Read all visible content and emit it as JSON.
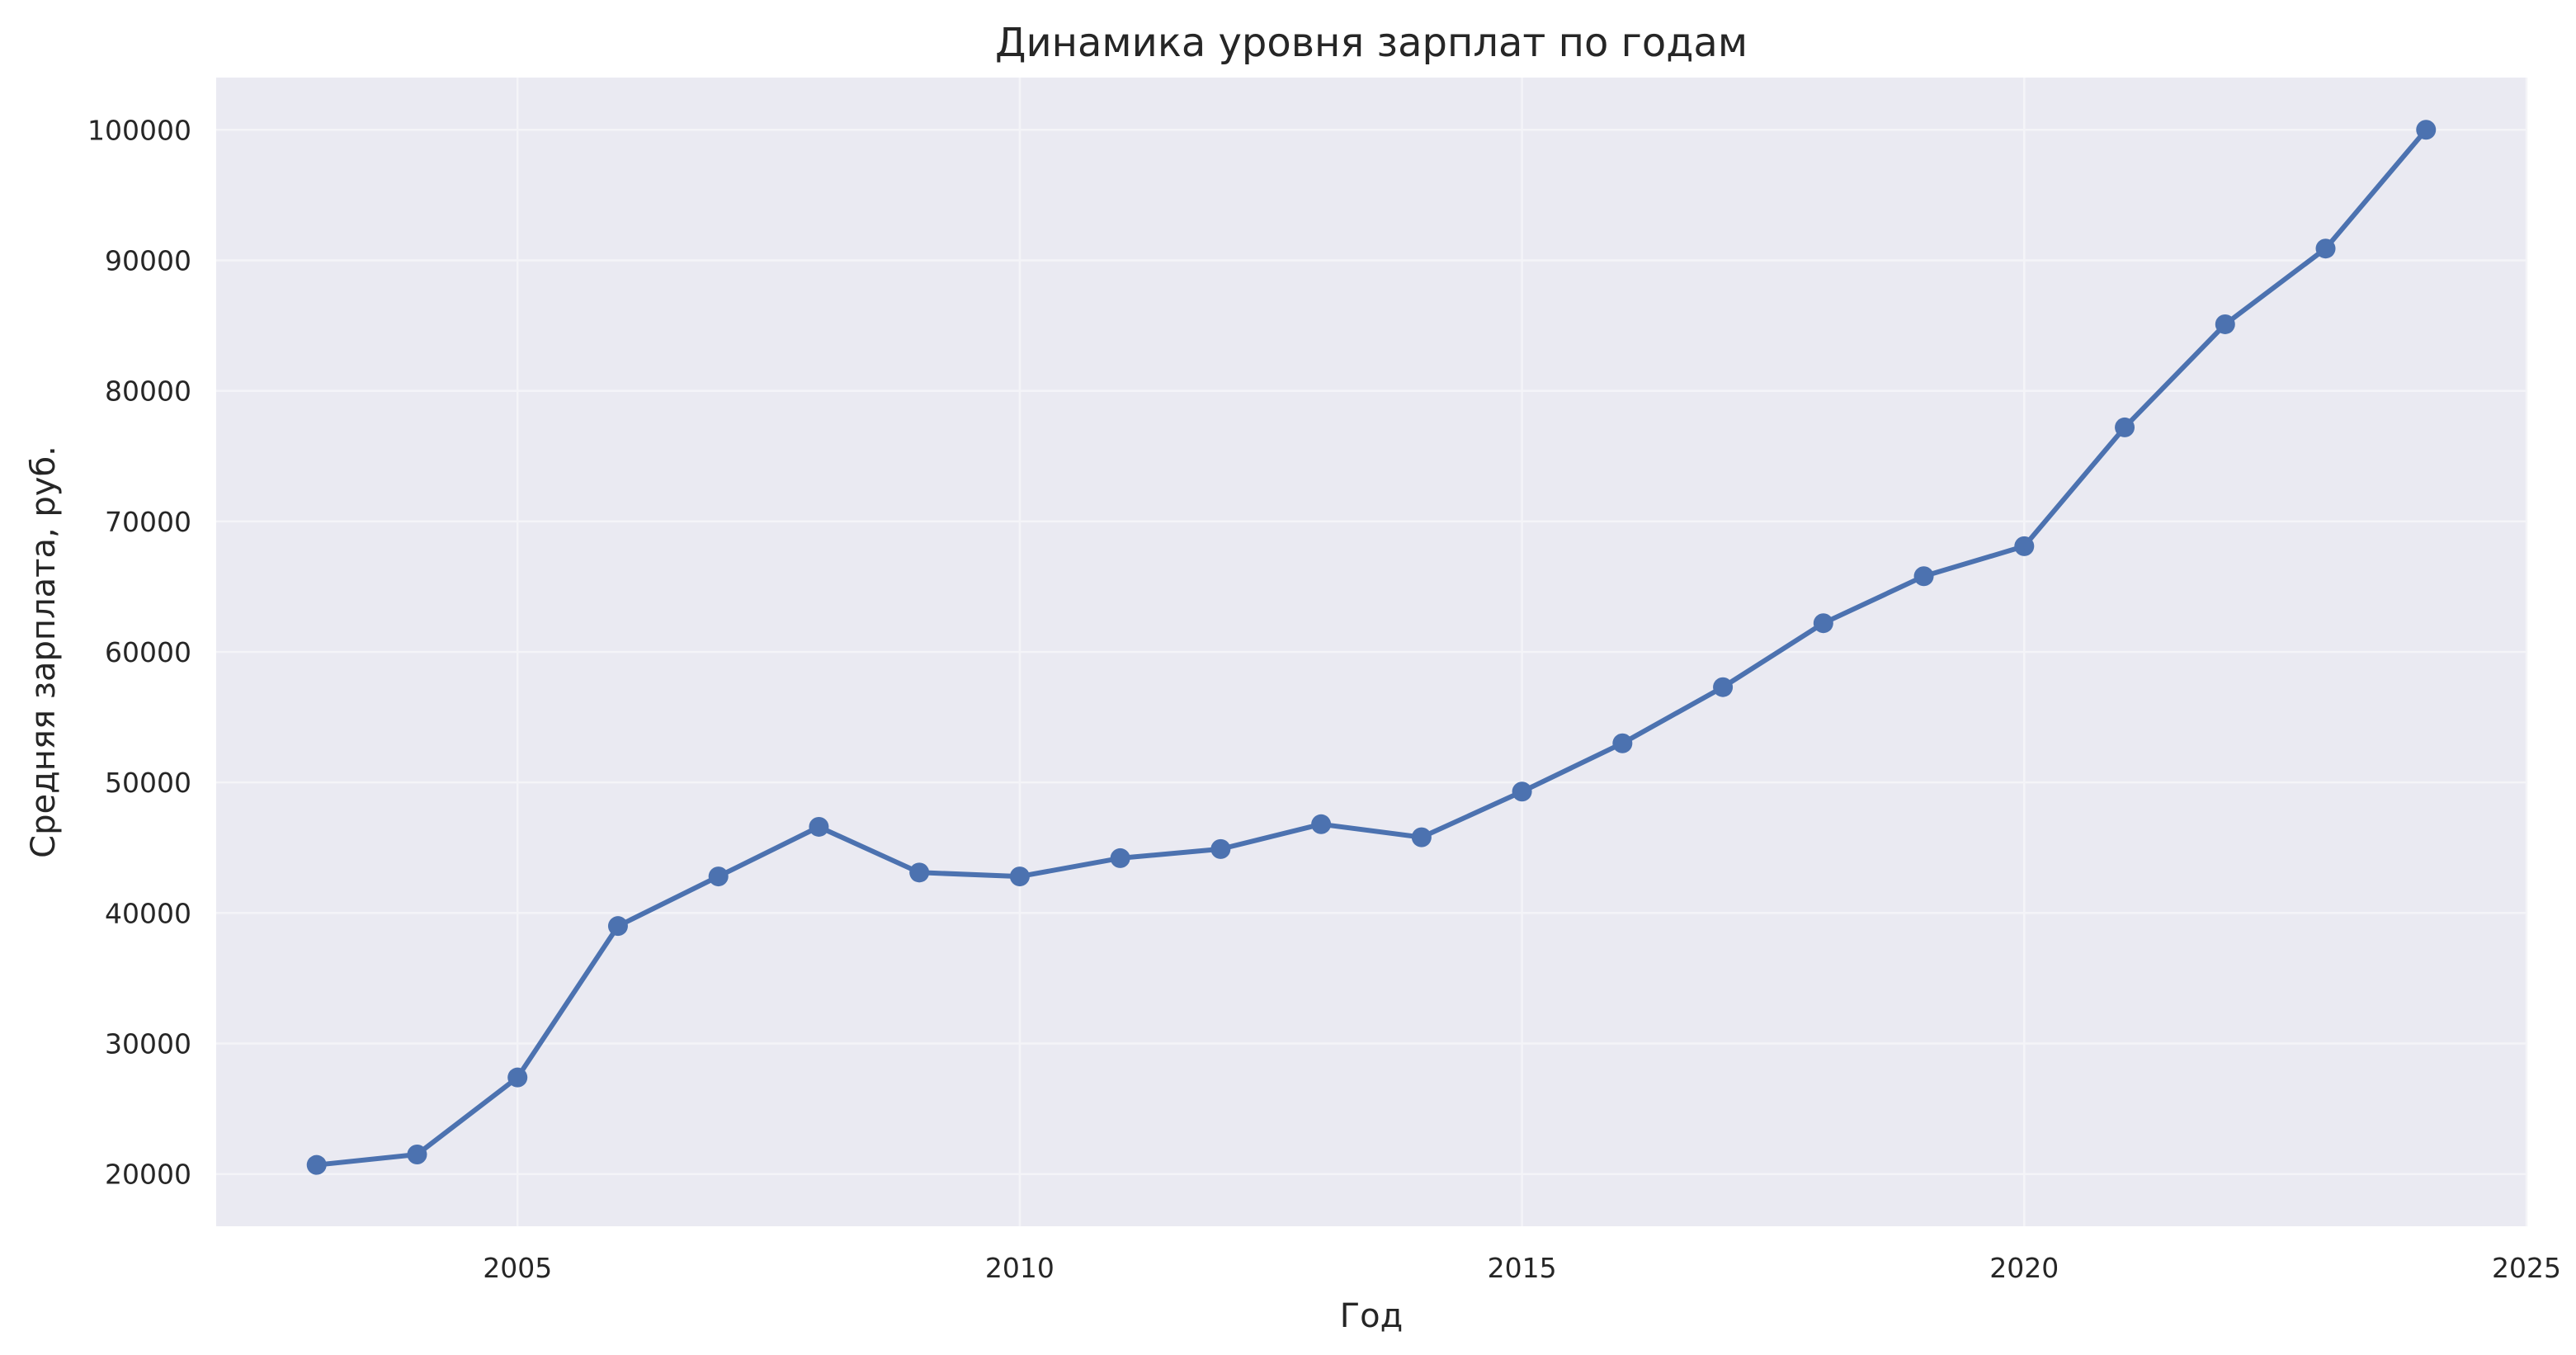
{
  "chart_data": {
    "type": "line",
    "title": "Динамика уровня зарплат по годам",
    "xlabel": "Год",
    "ylabel": "Средняя зарплата, руб.",
    "xlim": [
      2002,
      2025
    ],
    "ylim": [
      16000,
      104000
    ],
    "x_ticks": [
      2005,
      2010,
      2015,
      2020,
      2025
    ],
    "y_ticks": [
      20000,
      30000,
      40000,
      50000,
      60000,
      70000,
      80000,
      90000,
      100000
    ],
    "grid": true,
    "series": [
      {
        "color": "#4c72b0",
        "marker": "circle",
        "x": [
          2003,
          2004,
          2005,
          2006,
          2007,
          2008,
          2009,
          2010,
          2011,
          2012,
          2013,
          2014,
          2015,
          2016,
          2017,
          2018,
          2019,
          2020,
          2021,
          2022,
          2023,
          2024
        ],
        "values": [
          20700,
          21500,
          27400,
          39000,
          42800,
          46600,
          43100,
          42800,
          44200,
          44900,
          46800,
          45800,
          49300,
          53000,
          57300,
          62200,
          65800,
          68100,
          77200,
          85100,
          90900,
          100000
        ]
      }
    ]
  },
  "colors": {
    "plot_background": "#eaeaf2",
    "grid": "#f4f4f8",
    "line": "#4c72b0",
    "text": "#262626"
  }
}
